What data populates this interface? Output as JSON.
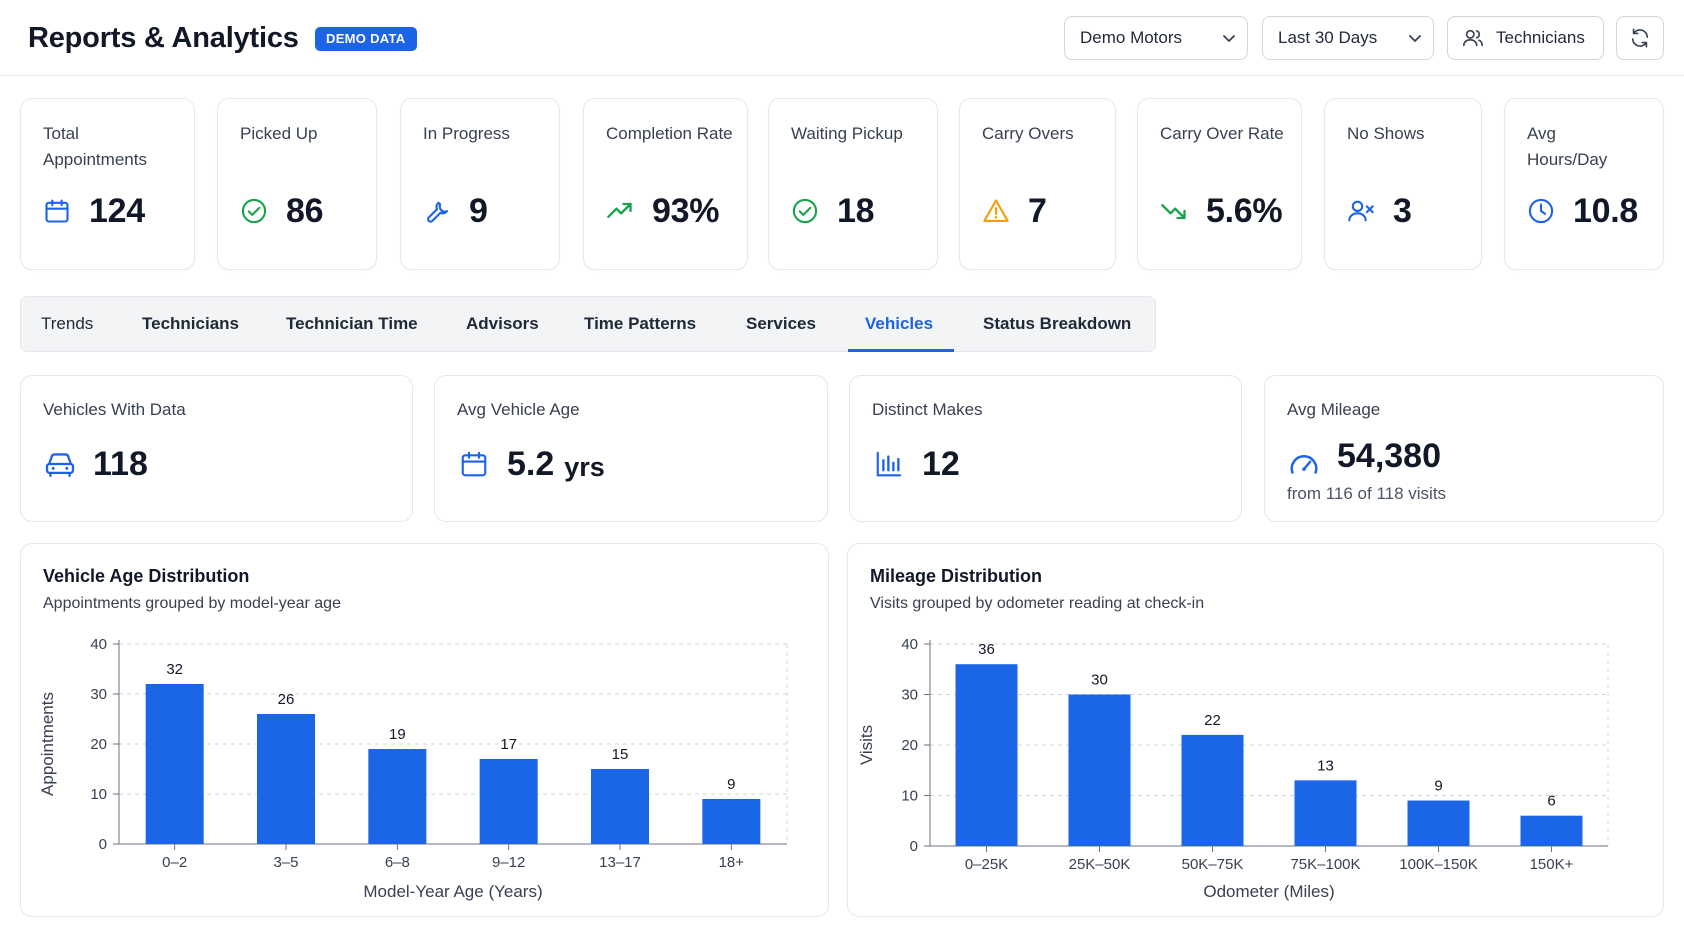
{
  "header": {
    "title": "Reports & Analytics",
    "badge": "DEMO DATA",
    "dealer_select": "Demo Motors",
    "range_select": "Last 30 Days",
    "technicians_button": "Technicians"
  },
  "kpis": [
    {
      "label": "Total Appointments",
      "value": "124",
      "icon": "calendar-icon"
    },
    {
      "label": "Picked Up",
      "value": "86",
      "icon": "check-circle-icon"
    },
    {
      "label": "In Progress",
      "value": "9",
      "icon": "wrench-icon"
    },
    {
      "label": "Completion Rate",
      "value": "93%",
      "icon": "trending-up-icon"
    },
    {
      "label": "Waiting Pickup",
      "value": "18",
      "icon": "check-circle-icon"
    },
    {
      "label": "Carry Overs",
      "value": "7",
      "icon": "warning-icon"
    },
    {
      "label": "Carry Over Rate",
      "value": "5.6%",
      "icon": "trending-down-icon"
    },
    {
      "label": "No Shows",
      "value": "3",
      "icon": "user-x-icon"
    },
    {
      "label": "Avg Hours/Day",
      "value": "10.8",
      "icon": "clock-icon"
    }
  ],
  "tabs": [
    {
      "label": "Trends",
      "active": false
    },
    {
      "label": "Technicians",
      "active": false
    },
    {
      "label": "Technician Time",
      "active": false
    },
    {
      "label": "Advisors",
      "active": false
    },
    {
      "label": "Time Patterns",
      "active": false
    },
    {
      "label": "Services",
      "active": false
    },
    {
      "label": "Vehicles",
      "active": true
    },
    {
      "label": "Status Breakdown",
      "active": false
    }
  ],
  "vehicle_stats": [
    {
      "label": "Vehicles With Data",
      "value": "118",
      "icon": "car-icon"
    },
    {
      "label": "Avg Vehicle Age",
      "value": "5.2",
      "unit": "yrs",
      "icon": "calendar-icon"
    },
    {
      "label": "Distinct Makes",
      "value": "12",
      "icon": "bar-chart-icon"
    },
    {
      "label": "Avg Mileage",
      "value": "54,380",
      "sub": "from 116 of 118 visits",
      "icon": "speedometer-icon"
    }
  ],
  "colors": {
    "accent": "#1d63e8",
    "success": "#16a34a",
    "warning": "#f59e0b",
    "bar": "#1a66e6"
  },
  "chart_data": [
    {
      "type": "bar",
      "title": "Vehicle Age Distribution",
      "subtitle": "Appointments grouped by model-year age",
      "categories": [
        "0–2",
        "3–5",
        "6–8",
        "9–12",
        "13–17",
        "18+"
      ],
      "values": [
        32,
        26,
        19,
        17,
        15,
        9
      ],
      "xlabel": "Model-Year Age (Years)",
      "ylabel": "Appointments",
      "ylim": [
        0,
        40
      ],
      "yticks": [
        0,
        10,
        20,
        30,
        40
      ],
      "grid": true
    },
    {
      "type": "bar",
      "title": "Mileage Distribution",
      "subtitle": "Visits grouped by odometer reading at check-in",
      "categories": [
        "0–25K",
        "25K–50K",
        "50K–75K",
        "75K–100K",
        "100K–150K",
        "150K+"
      ],
      "values": [
        36,
        30,
        22,
        13,
        9,
        6
      ],
      "xlabel": "Odometer (Miles)",
      "ylabel": "Visits",
      "ylim": [
        0,
        40
      ],
      "yticks": [
        0,
        10,
        20,
        30,
        40
      ],
      "grid": true
    }
  ]
}
